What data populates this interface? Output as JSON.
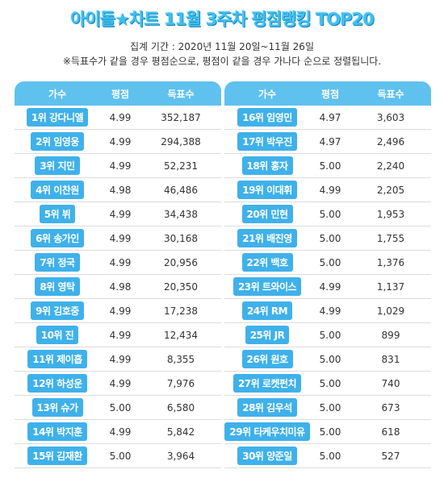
{
  "title": "아이돌★차트 11월 3주차 평점랭킹 TOP20",
  "period": "집계 기간 : 2020년 11월 20일~11월 26일",
  "note": "※득표수가 같을 경우 평점순으로, 평점이 같을 경우 가나다 순으로 정렬됩니다.",
  "headers": {
    "singer": "가수",
    "score": "평점",
    "votes": "득표수"
  },
  "left_rows": [
    {
      "name": "1위 강다니엘",
      "score": "4.99",
      "votes": "352,187"
    },
    {
      "name": "2위 임영웅",
      "score": "4.99",
      "votes": "294,388"
    },
    {
      "name": "3위 지민",
      "score": "4.99",
      "votes": "52,231"
    },
    {
      "name": "4위 이찬원",
      "score": "4.98",
      "votes": "46,486"
    },
    {
      "name": "5위 뷔",
      "score": "4.99",
      "votes": "34,438"
    },
    {
      "name": "6위 송가인",
      "score": "4.99",
      "votes": "30,168"
    },
    {
      "name": "7위 정국",
      "score": "4.99",
      "votes": "20,956"
    },
    {
      "name": "8위 영탁",
      "score": "4.98",
      "votes": "20,350"
    },
    {
      "name": "9위 김호중",
      "score": "4.99",
      "votes": "17,238"
    },
    {
      "name": "10위 진",
      "score": "4.99",
      "votes": "12,434"
    },
    {
      "name": "11위 제이홉",
      "score": "4.99",
      "votes": "8,355"
    },
    {
      "name": "12위 하성운",
      "score": "4.99",
      "votes": "7,976"
    },
    {
      "name": "13위 슈가",
      "score": "5.00",
      "votes": "6,580"
    },
    {
      "name": "14위 박지훈",
      "score": "4.99",
      "votes": "5,842"
    },
    {
      "name": "15위 김재환",
      "score": "5.00",
      "votes": "3,964"
    }
  ],
  "right_rows": [
    {
      "name": "16위 임영민",
      "score": "4.97",
      "votes": "3,603"
    },
    {
      "name": "17위 박우진",
      "score": "4.97",
      "votes": "2,496"
    },
    {
      "name": "18위 홍자",
      "score": "5.00",
      "votes": "2,240"
    },
    {
      "name": "19위 이대휘",
      "score": "4.99",
      "votes": "2,205"
    },
    {
      "name": "20위 민현",
      "score": "5.00",
      "votes": "1,953"
    },
    {
      "name": "21위 배진영",
      "score": "5.00",
      "votes": "1,755"
    },
    {
      "name": "22위 백호",
      "score": "5.00",
      "votes": "1,376"
    },
    {
      "name": "23위 트와이스",
      "score": "4.99",
      "votes": "1,137"
    },
    {
      "name": "24위 RM",
      "score": "4.99",
      "votes": "1,029"
    },
    {
      "name": "25위 JR",
      "score": "5.00",
      "votes": "899"
    },
    {
      "name": "26위 원호",
      "score": "5.00",
      "votes": "831"
    },
    {
      "name": "27위 로켓펀치",
      "score": "5.00",
      "votes": "740"
    },
    {
      "name": "28위 김우석",
      "score": "5.00",
      "votes": "673"
    },
    {
      "name": "29위 타케우치미유",
      "score": "5.00",
      "votes": "618"
    },
    {
      "name": "30위 양준일",
      "score": "5.00",
      "votes": "527"
    }
  ]
}
